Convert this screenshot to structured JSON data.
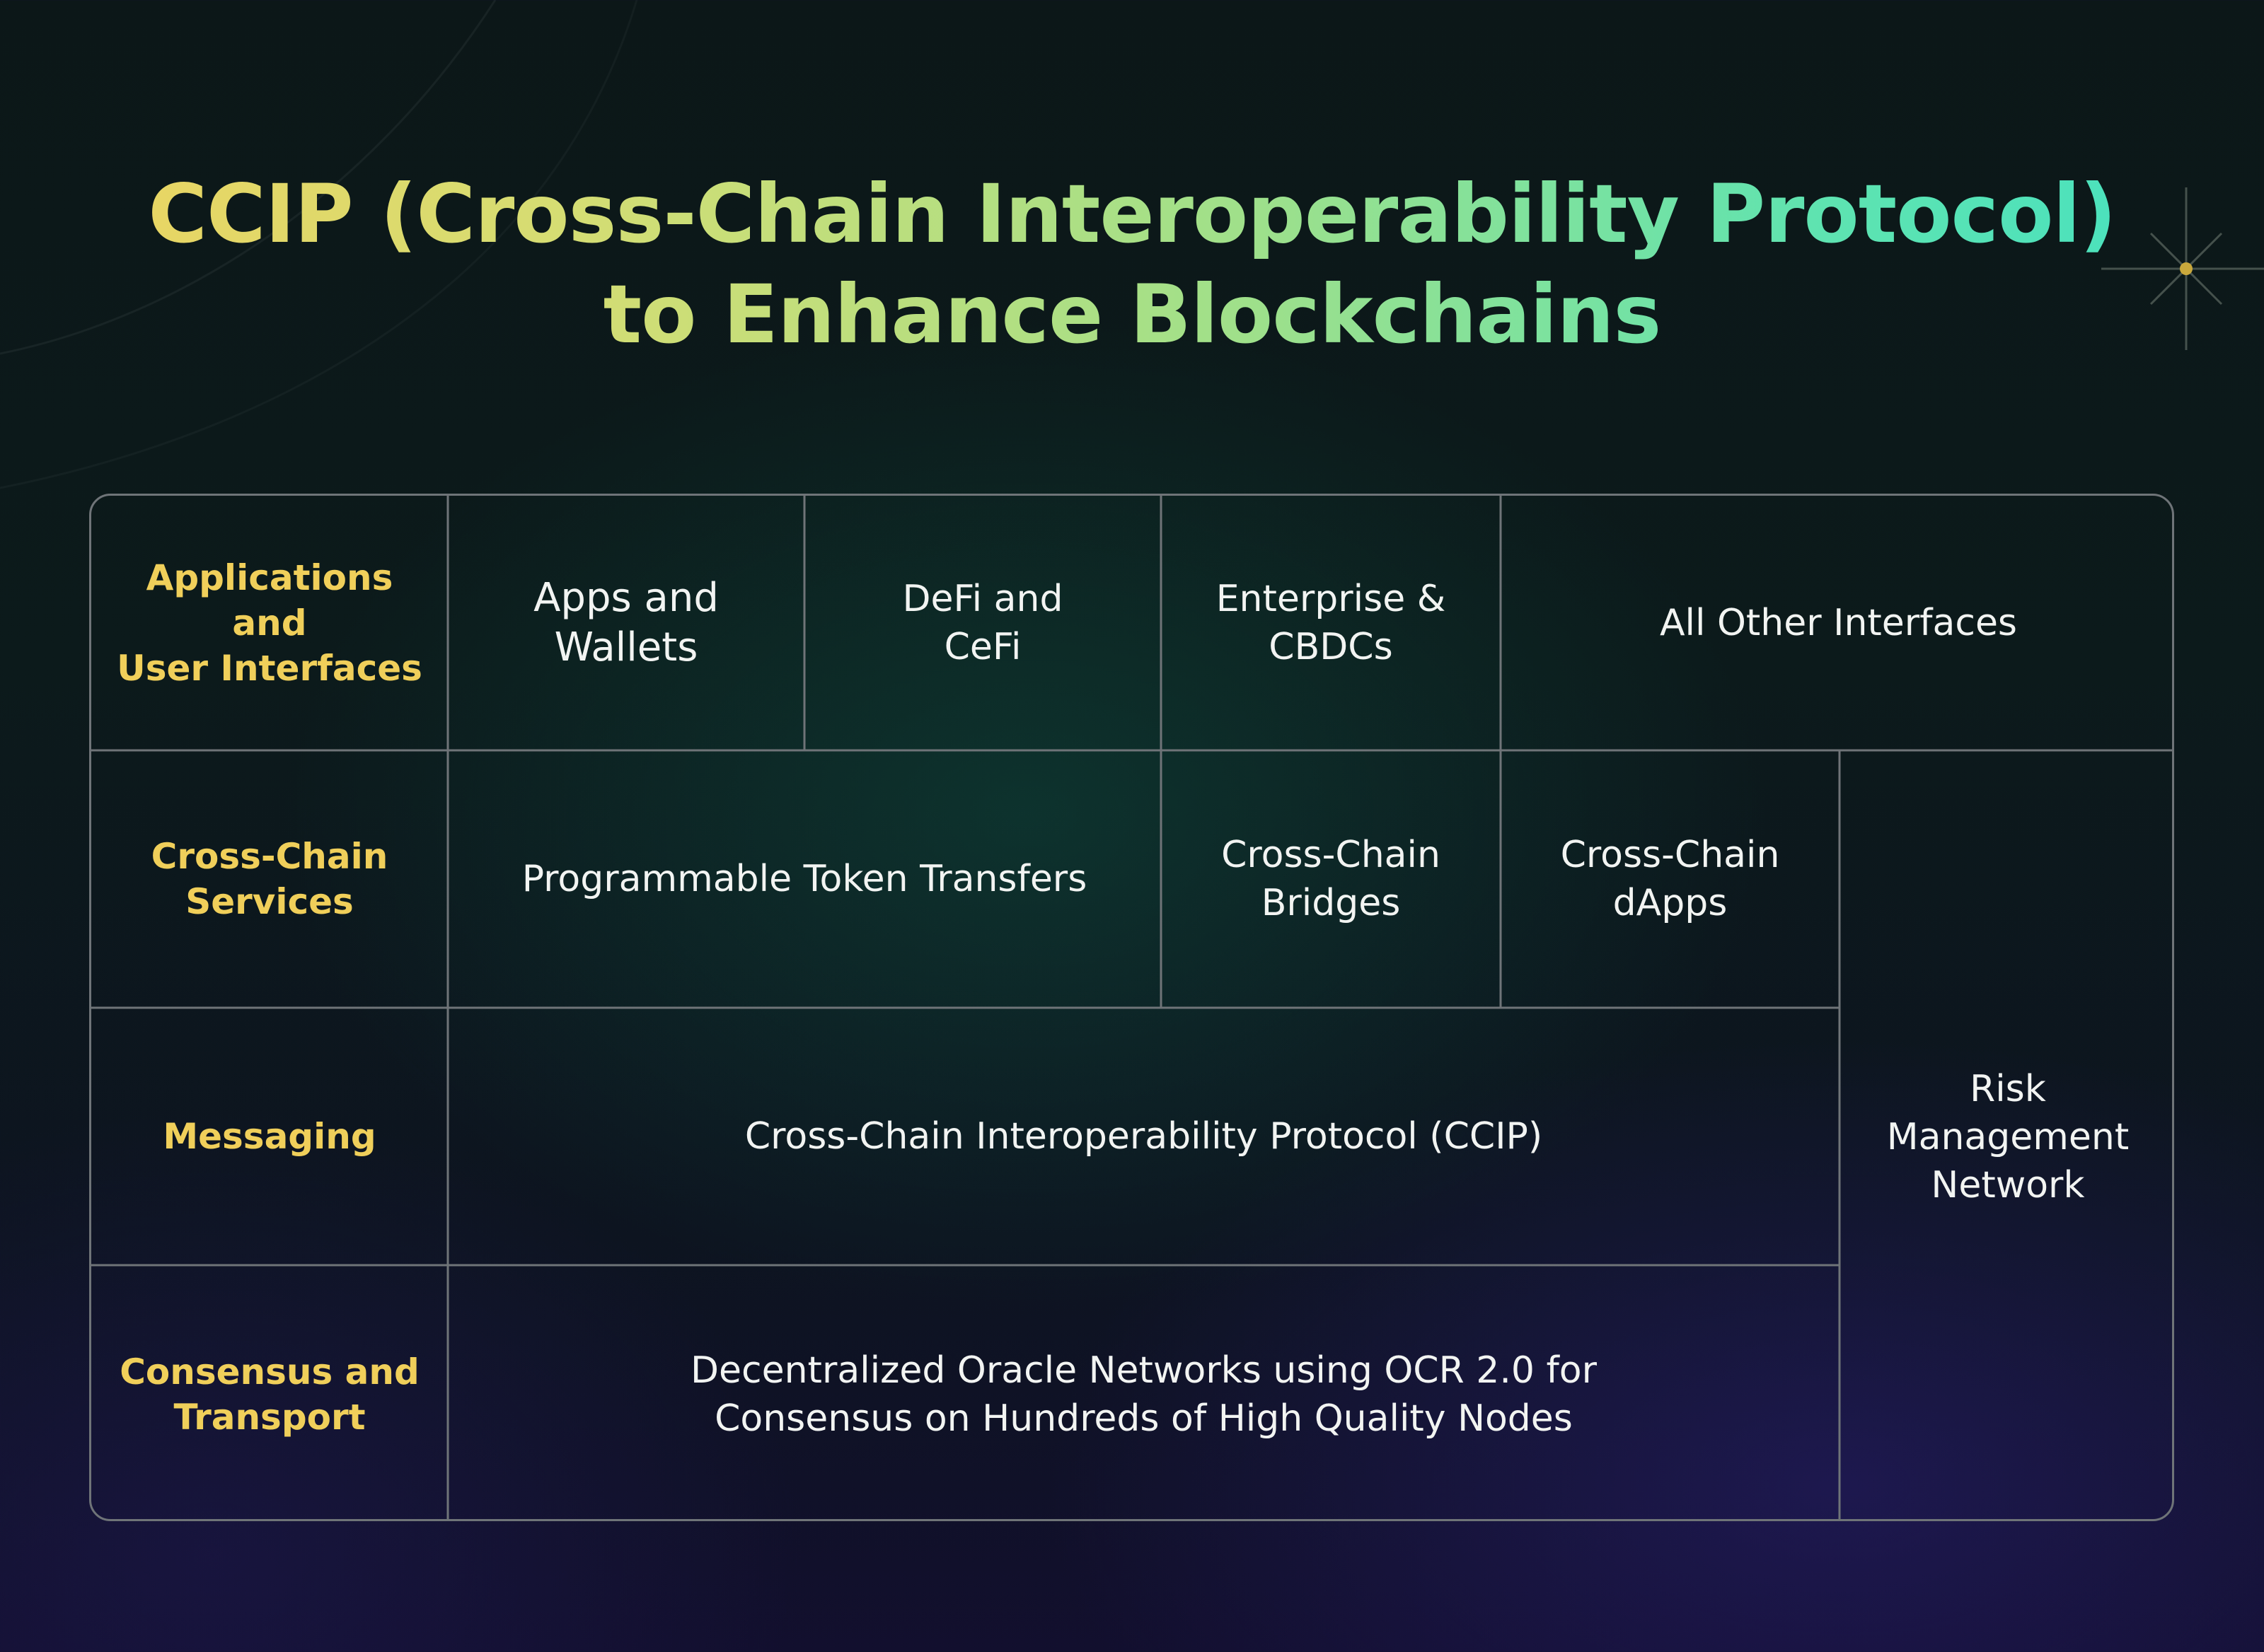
{
  "title": {
    "line1": "CCIP (Cross-Chain Interoperability Protocol)",
    "line2": "to Enhance Blockchains"
  },
  "colors": {
    "title_gradient": [
      "#eed35f",
      "#9fe08a",
      "#43e2c2"
    ],
    "row_label": "#f0cf5a",
    "cell_text": "#f2f4f2",
    "grid_line": "#6f7478"
  },
  "rows": {
    "applications": {
      "label": "Applications and\nUser Interfaces",
      "items": [
        "Apps and\nWallets",
        "DeFi and\nCeFi",
        "Enterprise &\nCBDCs",
        "All Other Interfaces"
      ]
    },
    "services": {
      "label": "Cross-Chain\nServices",
      "items": [
        "Programmable Token Transfers",
        "Cross-Chain\nBridges",
        "Cross-Chain\ndApps"
      ]
    },
    "messaging": {
      "label": "Messaging",
      "items": [
        "Cross-Chain Interoperability Protocol (CCIP)"
      ]
    },
    "consensus": {
      "label": "Consensus and\nTransport",
      "items": [
        "Decentralized Oracle Networks using OCR 2.0 for\nConsensus on Hundreds of High Quality Nodes"
      ]
    }
  },
  "side_panel": {
    "label": "Risk\nManagement\nNetwork"
  }
}
